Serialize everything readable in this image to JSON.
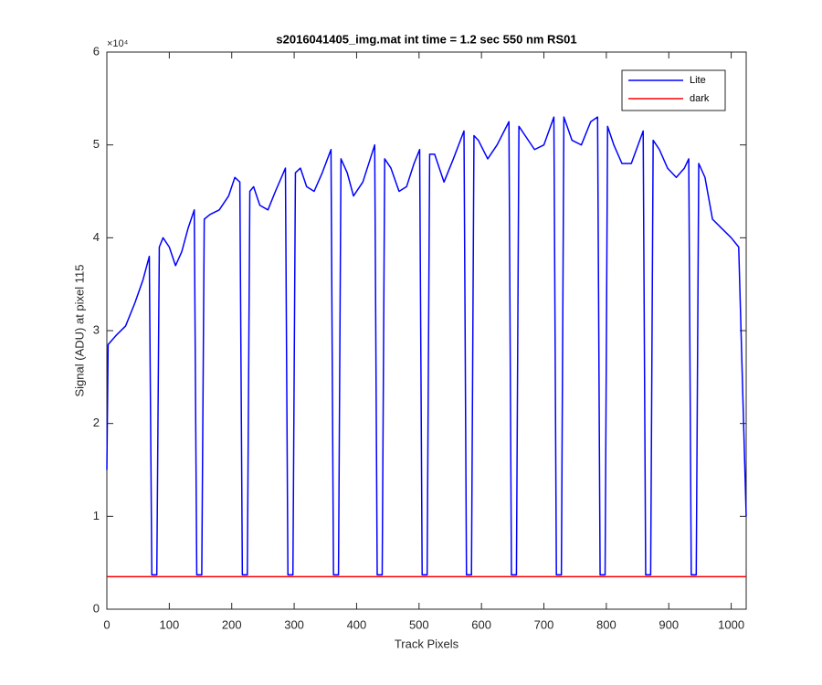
{
  "chart_data": {
    "type": "line",
    "title": "s2016041405_img.mat int time = 1.2 sec  550 nm RS01",
    "x_label": "Track Pixels",
    "y_label": "Signal (ADU) at pixel 115",
    "y_exponent_label": "×10⁴",
    "xlim": [
      0,
      1024
    ],
    "ylim": [
      0,
      6
    ],
    "xticks": [
      0,
      100,
      200,
      300,
      400,
      500,
      600,
      700,
      800,
      900,
      1000
    ],
    "yticks": [
      0,
      1,
      2,
      3,
      4,
      5,
      6
    ],
    "legend_position": "top-right",
    "series": [
      {
        "name": "Lite",
        "color": "#0000ff",
        "x": [
          0,
          2,
          15,
          30,
          45,
          58,
          68,
          72,
          80,
          84,
          90,
          100,
          110,
          120,
          130,
          140,
          144,
          152,
          156,
          165,
          180,
          195,
          205,
          213,
          217,
          225,
          229,
          235,
          245,
          258,
          270,
          286,
          290,
          298,
          302,
          310,
          320,
          332,
          345,
          359,
          363,
          371,
          375,
          385,
          395,
          410,
          429,
          433,
          441,
          445,
          455,
          468,
          480,
          492,
          501,
          505,
          513,
          517,
          525,
          540,
          555,
          572,
          576,
          584,
          588,
          595,
          610,
          625,
          644,
          648,
          656,
          660,
          670,
          685,
          700,
          716,
          720,
          728,
          732,
          745,
          760,
          775,
          786,
          790,
          798,
          802,
          812,
          825,
          840,
          859,
          863,
          871,
          875,
          885,
          898,
          912,
          925,
          932,
          936,
          944,
          948,
          958,
          970,
          985,
          1000,
          1012,
          1024
        ],
        "values": [
          1.5,
          2.85,
          2.95,
          3.05,
          3.3,
          3.55,
          3.8,
          0.37,
          0.37,
          3.9,
          4.0,
          3.9,
          3.7,
          3.85,
          4.1,
          4.3,
          0.37,
          0.37,
          4.2,
          4.25,
          4.3,
          4.45,
          4.65,
          4.6,
          0.37,
          0.37,
          4.5,
          4.55,
          4.35,
          4.3,
          4.5,
          4.75,
          0.37,
          0.37,
          4.7,
          4.75,
          4.55,
          4.5,
          4.7,
          4.95,
          0.37,
          0.37,
          4.85,
          4.7,
          4.45,
          4.6,
          5.0,
          0.37,
          0.37,
          4.85,
          4.75,
          4.5,
          4.55,
          4.8,
          4.95,
          0.37,
          0.37,
          4.9,
          4.9,
          4.6,
          4.85,
          5.15,
          0.37,
          0.37,
          5.1,
          5.05,
          4.85,
          5.0,
          5.25,
          0.37,
          0.37,
          5.2,
          5.1,
          4.95,
          5.0,
          5.3,
          0.37,
          0.37,
          5.3,
          5.05,
          5.0,
          5.25,
          5.3,
          0.37,
          0.37,
          5.2,
          5.0,
          4.8,
          4.8,
          5.15,
          0.37,
          0.37,
          5.05,
          4.95,
          4.75,
          4.65,
          4.75,
          4.85,
          0.37,
          0.37,
          4.8,
          4.65,
          4.2,
          4.1,
          4.0,
          3.9,
          1.0
        ]
      },
      {
        "name": "dark",
        "color": "#ff0000",
        "x": [
          0,
          1024
        ],
        "values": [
          0.35,
          0.35
        ]
      }
    ]
  }
}
